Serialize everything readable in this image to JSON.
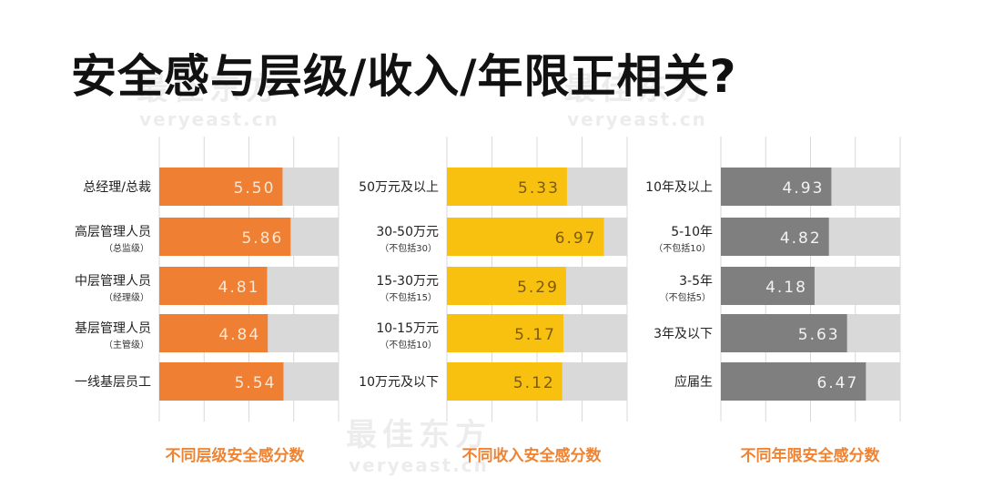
{
  "title": "安全感与层级/收入/年限正相关?",
  "watermark": {
    "brand": "最佳东方",
    "url": "veryeast.cn"
  },
  "chart_data": [
    {
      "type": "bar",
      "orientation": "horizontal",
      "title": "不同层级安全感分数",
      "categories": [
        {
          "label": "总经理/总裁",
          "sub": ""
        },
        {
          "label": "高层管理人员",
          "sub": "（总监级）"
        },
        {
          "label": "中层管理人员",
          "sub": "（经理级）"
        },
        {
          "label": "基层管理人员",
          "sub": "（主管级）"
        },
        {
          "label": "一线基层员工",
          "sub": ""
        }
      ],
      "values": [
        5.5,
        5.86,
        4.81,
        4.84,
        5.54
      ],
      "data_labels": [
        "5.50",
        "5.86",
        "4.81",
        "4.84",
        "5.54"
      ],
      "xlim": [
        0,
        8
      ],
      "grid": true,
      "bar_color": "#ee7f33",
      "label_color": "#fde7d3",
      "background_color": "#d9d9d9"
    },
    {
      "type": "bar",
      "orientation": "horizontal",
      "title": "不同收入安全感分数",
      "categories": [
        {
          "label": "50万元及以上",
          "sub": ""
        },
        {
          "label": "30-50万元",
          "sub": "（不包括30）"
        },
        {
          "label": "15-30万元",
          "sub": "（不包括15）"
        },
        {
          "label": "10-15万元",
          "sub": "（不包括10）"
        },
        {
          "label": "10万元及以下",
          "sub": ""
        }
      ],
      "values": [
        5.33,
        6.97,
        5.29,
        5.17,
        5.12
      ],
      "data_labels": [
        "5.33",
        "6.97",
        "5.29",
        "5.17",
        "5.12"
      ],
      "xlim": [
        0,
        8
      ],
      "grid": true,
      "bar_color": "#f8c10f",
      "label_color": "#7a5a10",
      "background_color": "#d9d9d9"
    },
    {
      "type": "bar",
      "orientation": "horizontal",
      "title": "不同年限安全感分数",
      "categories": [
        {
          "label": "10年及以上",
          "sub": ""
        },
        {
          "label": "5-10年",
          "sub": "（不包括10）"
        },
        {
          "label": "3-5年",
          "sub": "（不包括5）"
        },
        {
          "label": "3年及以下",
          "sub": ""
        },
        {
          "label": "应届生",
          "sub": ""
        }
      ],
      "values": [
        4.93,
        4.82,
        4.18,
        5.63,
        6.47
      ],
      "data_labels": [
        "4.93",
        "4.82",
        "4.18",
        "5.63",
        "6.47"
      ],
      "xlim": [
        0,
        8
      ],
      "grid": true,
      "bar_color": "#7f7f7f",
      "label_color": "#f2f2f2",
      "background_color": "#d9d9d9"
    }
  ]
}
